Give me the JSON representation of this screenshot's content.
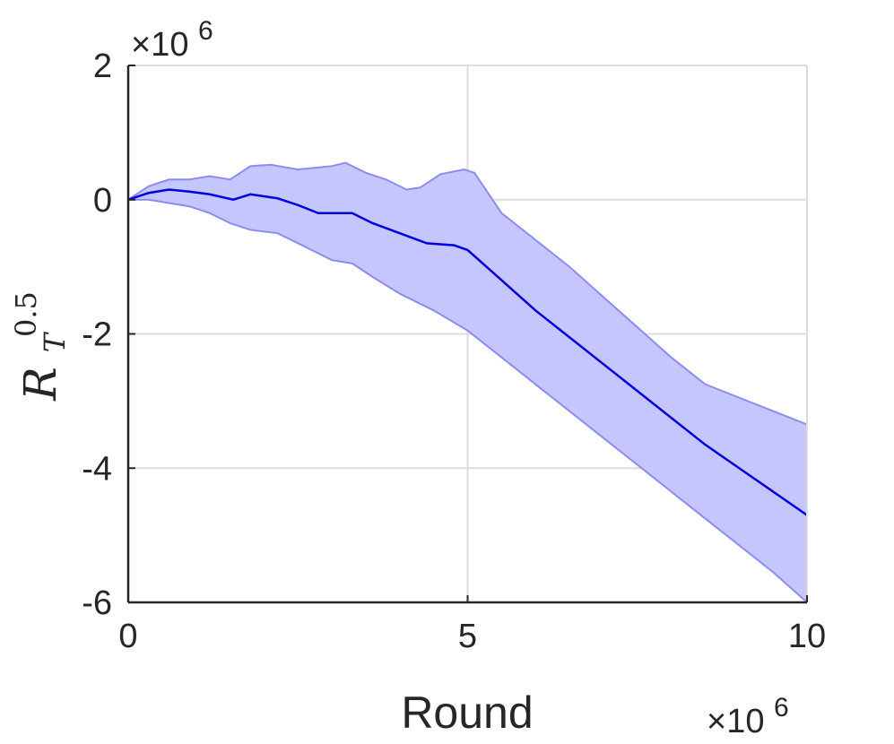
{
  "chart_data": {
    "type": "line",
    "xlabel": "Round",
    "ylabel": {
      "base": "R",
      "subscript": "T",
      "superscript": "0.5"
    },
    "x_multiplier": "×10",
    "x_multiplier_exp": "6",
    "y_multiplier": "×10",
    "y_multiplier_exp": "6",
    "xlim": [
      0,
      10
    ],
    "ylim": [
      -6,
      2
    ],
    "x_ticks": [
      0,
      5,
      10
    ],
    "y_ticks": [
      -6,
      -4,
      -2,
      0,
      2
    ],
    "x_tick_labels": [
      "0",
      "5",
      "10"
    ],
    "y_tick_labels": [
      "-6",
      "-4",
      "-2",
      "0",
      "2"
    ],
    "grid": true,
    "line_color": "#0000e0",
    "band_fill": "#c6c6ff",
    "band_edge": "#8c8cf0",
    "series": [
      {
        "values": [
          [
            0,
            0.0
          ],
          [
            0.3,
            0.1
          ],
          [
            0.6,
            0.15
          ],
          [
            0.9,
            0.12
          ],
          [
            1.2,
            0.08
          ],
          [
            1.55,
            0.0
          ],
          [
            1.8,
            0.08
          ],
          [
            2.2,
            0.02
          ],
          [
            2.5,
            -0.08
          ],
          [
            2.8,
            -0.2
          ],
          [
            3.1,
            -0.2
          ],
          [
            3.3,
            -0.2
          ],
          [
            3.6,
            -0.35
          ],
          [
            4.0,
            -0.5
          ],
          [
            4.4,
            -0.65
          ],
          [
            4.8,
            -0.68
          ],
          [
            5.0,
            -0.75
          ],
          [
            5.5,
            -1.2
          ],
          [
            6.0,
            -1.65
          ],
          [
            6.5,
            -2.05
          ],
          [
            7.0,
            -2.45
          ],
          [
            7.5,
            -2.85
          ],
          [
            8.0,
            -3.25
          ],
          [
            8.5,
            -3.65
          ],
          [
            9.0,
            -4.0
          ],
          [
            9.5,
            -4.35
          ],
          [
            10.0,
            -4.7
          ]
        ]
      }
    ],
    "band_upper": [
      [
        0,
        0.0
      ],
      [
        0.3,
        0.2
      ],
      [
        0.6,
        0.3
      ],
      [
        0.9,
        0.3
      ],
      [
        1.2,
        0.35
      ],
      [
        1.5,
        0.3
      ],
      [
        1.8,
        0.5
      ],
      [
        2.1,
        0.52
      ],
      [
        2.5,
        0.45
      ],
      [
        3.0,
        0.5
      ],
      [
        3.2,
        0.55
      ],
      [
        3.5,
        0.4
      ],
      [
        3.8,
        0.3
      ],
      [
        4.1,
        0.15
      ],
      [
        4.3,
        0.18
      ],
      [
        4.6,
        0.38
      ],
      [
        4.95,
        0.45
      ],
      [
        5.1,
        0.4
      ],
      [
        5.5,
        -0.2
      ],
      [
        6.0,
        -0.6
      ],
      [
        6.5,
        -1.0
      ],
      [
        7.0,
        -1.45
      ],
      [
        7.5,
        -1.9
      ],
      [
        8.0,
        -2.35
      ],
      [
        8.5,
        -2.75
      ],
      [
        9.0,
        -2.95
      ],
      [
        9.5,
        -3.15
      ],
      [
        10.0,
        -3.35
      ]
    ],
    "band_lower": [
      [
        0,
        0.0
      ],
      [
        0.3,
        0.0
      ],
      [
        0.6,
        -0.05
      ],
      [
        0.9,
        -0.1
      ],
      [
        1.2,
        -0.2
      ],
      [
        1.5,
        -0.35
      ],
      [
        1.8,
        -0.45
      ],
      [
        2.2,
        -0.5
      ],
      [
        2.6,
        -0.7
      ],
      [
        3.0,
        -0.9
      ],
      [
        3.3,
        -0.95
      ],
      [
        3.6,
        -1.15
      ],
      [
        4.0,
        -1.4
      ],
      [
        4.5,
        -1.65
      ],
      [
        5.0,
        -1.95
      ],
      [
        5.5,
        -2.35
      ],
      [
        6.0,
        -2.75
      ],
      [
        6.5,
        -3.15
      ],
      [
        7.0,
        -3.55
      ],
      [
        7.5,
        -3.95
      ],
      [
        8.0,
        -4.35
      ],
      [
        8.5,
        -4.75
      ],
      [
        9.0,
        -5.15
      ],
      [
        9.5,
        -5.55
      ],
      [
        10.0,
        -6.0
      ]
    ]
  }
}
